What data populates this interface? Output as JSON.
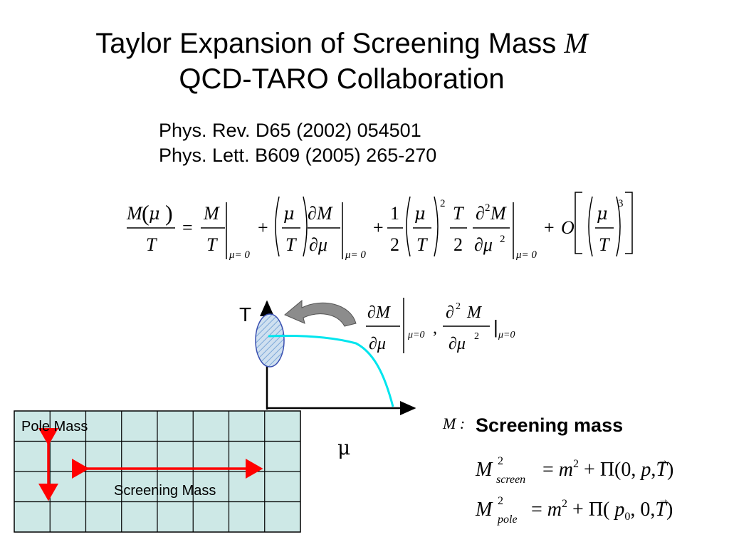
{
  "title": {
    "line1_prefix": "Taylor Expansion of Screening Mass",
    "line1_var": "M",
    "line2": "QCD-TARO Collaboration"
  },
  "references": [
    "Phys. Rev. D65 (2002) 054501",
    "Phys. Lett. B609 (2005) 265-270"
  ],
  "phase_diagram": {
    "y_axis_label": "T",
    "x_axis_label": "μ",
    "derivative_eval": "μ=0"
  },
  "lattice": {
    "pole_label": "Pole Mass",
    "screening_label": "Screening Mass",
    "columns": 8,
    "rows": 4,
    "fill": "#cde8e6",
    "arrow_color": "#ff0000"
  },
  "definitions": {
    "m_prefix": "M :",
    "screening_mass_label": "Screening mass",
    "screen_subscript": "screen",
    "pole_subscript": "pole"
  },
  "colors": {
    "curve": "#00e5ee",
    "ellipse_stroke": "#3a4fb0",
    "ellipse_fill": "#a8c8e8",
    "arrow_fill": "#8c8c8c"
  }
}
